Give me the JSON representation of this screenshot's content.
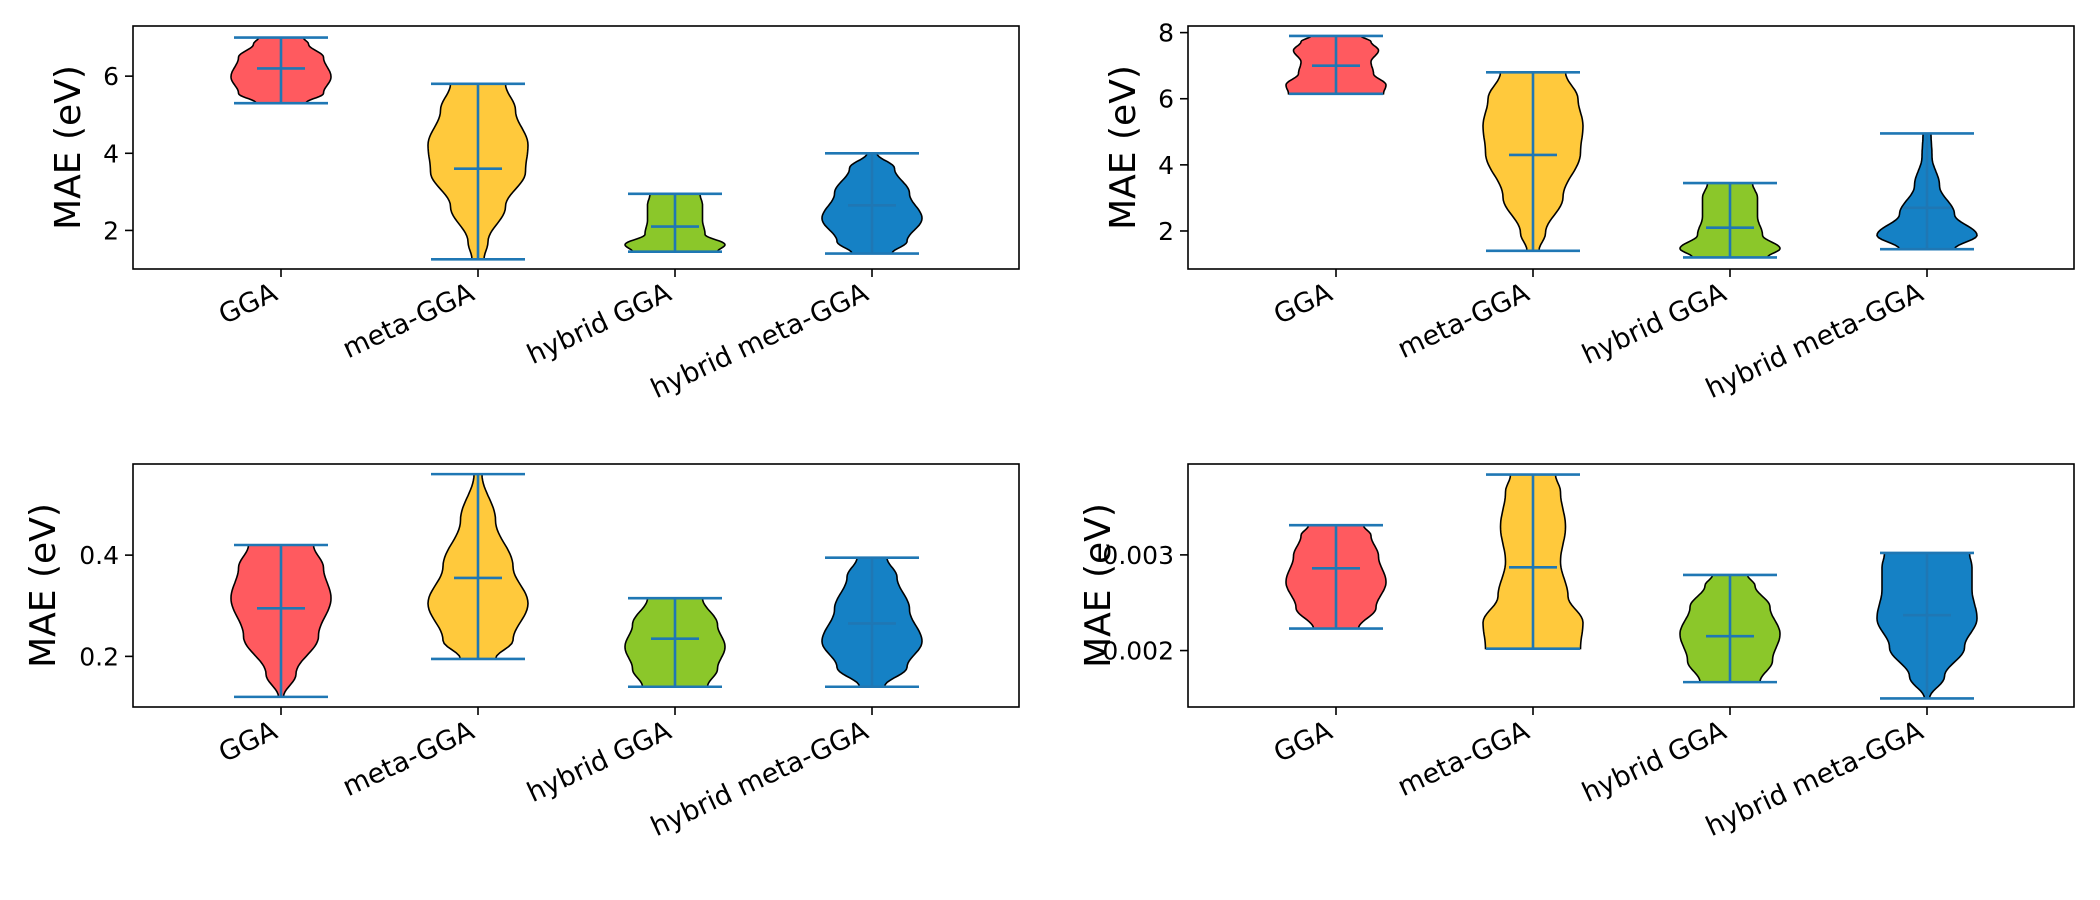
{
  "colors": {
    "bar_line": "#1f77b4",
    "outline": "#000000",
    "violin_fills": [
      "#ff5a5f",
      "#ffc93c",
      "#8bc72a",
      "#1581c5"
    ]
  },
  "chart_data": [
    {
      "type": "violin",
      "position": "top-left",
      "categories": [
        "GGA",
        "meta-GGA",
        "hybrid GGA",
        "hybrid meta-GGA"
      ],
      "ylabel": "MAE (eV)",
      "ylim": [
        1.0,
        7.3
      ],
      "yticks": [
        2,
        4,
        6
      ],
      "ytick_labels": [
        "2",
        "4",
        "6"
      ],
      "stats": [
        {
          "min": 5.3,
          "max": 7.0,
          "mean": 6.2
        },
        {
          "min": 1.25,
          "max": 5.8,
          "mean": 3.6
        },
        {
          "min": 1.45,
          "max": 2.95,
          "mean": 2.1
        },
        {
          "min": 1.4,
          "max": 4.0,
          "mean": 2.65
        }
      ],
      "shapes": [
        [
          [
            0,
            0.5
          ],
          [
            0.15,
            0.85
          ],
          [
            0.4,
            1.0
          ],
          [
            0.7,
            0.85
          ],
          [
            0.9,
            0.55
          ],
          [
            1.0,
            0.45
          ]
        ],
        [
          [
            0,
            0.12
          ],
          [
            0.1,
            0.2
          ],
          [
            0.3,
            0.55
          ],
          [
            0.5,
            0.95
          ],
          [
            0.65,
            1.0
          ],
          [
            0.85,
            0.75
          ],
          [
            1.0,
            0.55
          ]
        ],
        [
          [
            0,
            0.85
          ],
          [
            0.12,
            1.0
          ],
          [
            0.3,
            0.6
          ],
          [
            0.55,
            0.55
          ],
          [
            0.8,
            0.55
          ],
          [
            1.0,
            0.5
          ]
        ],
        [
          [
            0,
            0.4
          ],
          [
            0.12,
            0.7
          ],
          [
            0.35,
            1.0
          ],
          [
            0.6,
            0.75
          ],
          [
            0.85,
            0.45
          ],
          [
            1.0,
            0.1
          ]
        ]
      ]
    },
    {
      "type": "violin",
      "position": "top-right",
      "categories": [
        "GGA",
        "meta-GGA",
        "hybrid GGA",
        "hybrid meta-GGA"
      ],
      "ylabel": "MAE (eV)",
      "ylim": [
        0.85,
        8.2
      ],
      "yticks": [
        2,
        4,
        6,
        8
      ],
      "ytick_labels": [
        "2",
        "4",
        "6",
        "8"
      ],
      "stats": [
        {
          "min": 6.15,
          "max": 7.9,
          "mean": 7.0
        },
        {
          "min": 1.4,
          "max": 6.8,
          "mean": 4.3
        },
        {
          "min": 1.2,
          "max": 3.45,
          "mean": 2.1
        },
        {
          "min": 1.45,
          "max": 4.95,
          "mean": 2.7
        }
      ],
      "shapes": [
        [
          [
            0,
            0.95
          ],
          [
            0.15,
            1.0
          ],
          [
            0.35,
            0.75
          ],
          [
            0.55,
            0.7
          ],
          [
            0.75,
            0.85
          ],
          [
            0.9,
            0.7
          ],
          [
            1.0,
            0.5
          ]
        ],
        [
          [
            0,
            0.12
          ],
          [
            0.1,
            0.25
          ],
          [
            0.3,
            0.6
          ],
          [
            0.55,
            0.95
          ],
          [
            0.7,
            1.0
          ],
          [
            0.85,
            0.9
          ],
          [
            1.0,
            0.65
          ]
        ],
        [
          [
            0,
            0.75
          ],
          [
            0.12,
            1.0
          ],
          [
            0.3,
            0.65
          ],
          [
            0.55,
            0.55
          ],
          [
            0.8,
            0.55
          ],
          [
            1.0,
            0.45
          ]
        ],
        [
          [
            0,
            0.55
          ],
          [
            0.12,
            1.0
          ],
          [
            0.3,
            0.55
          ],
          [
            0.55,
            0.25
          ],
          [
            0.8,
            0.1
          ],
          [
            1.0,
            0.08
          ]
        ]
      ]
    },
    {
      "type": "violin",
      "position": "bottom-left",
      "categories": [
        "GGA",
        "meta-GGA",
        "hybrid GGA",
        "hybrid meta-GGA"
      ],
      "ylabel": "MAE (eV)",
      "ylim": [
        0.1,
        0.58
      ],
      "yticks": [
        0.2,
        0.4
      ],
      "ytick_labels": [
        "0.2",
        "0.4"
      ],
      "stats": [
        {
          "min": 0.12,
          "max": 0.42,
          "mean": 0.295
        },
        {
          "min": 0.195,
          "max": 0.56,
          "mean": 0.355
        },
        {
          "min": 0.14,
          "max": 0.315,
          "mean": 0.235
        },
        {
          "min": 0.14,
          "max": 0.395,
          "mean": 0.265
        }
      ],
      "shapes": [
        [
          [
            0,
            0.05
          ],
          [
            0.15,
            0.3
          ],
          [
            0.4,
            0.75
          ],
          [
            0.65,
            1.0
          ],
          [
            0.85,
            0.85
          ],
          [
            1.0,
            0.65
          ]
        ],
        [
          [
            0,
            0.35
          ],
          [
            0.1,
            0.7
          ],
          [
            0.3,
            1.0
          ],
          [
            0.5,
            0.7
          ],
          [
            0.75,
            0.35
          ],
          [
            1.0,
            0.08
          ]
        ],
        [
          [
            0,
            0.65
          ],
          [
            0.2,
            0.85
          ],
          [
            0.45,
            1.0
          ],
          [
            0.7,
            0.85
          ],
          [
            1.0,
            0.55
          ]
        ],
        [
          [
            0,
            0.25
          ],
          [
            0.15,
            0.7
          ],
          [
            0.35,
            1.0
          ],
          [
            0.6,
            0.75
          ],
          [
            0.85,
            0.5
          ],
          [
            1.0,
            0.3
          ]
        ]
      ]
    },
    {
      "type": "violin",
      "position": "bottom-right",
      "categories": [
        "GGA",
        "meta-GGA",
        "hybrid GGA",
        "hybrid meta-GGA"
      ],
      "ylabel": "MAE (eV)",
      "ylim": [
        0.00141,
        0.00395
      ],
      "yticks": [
        0.002,
        0.003
      ],
      "ytick_labels": [
        "0.002",
        "0.003"
      ],
      "stats": [
        {
          "min": 0.00223,
          "max": 0.00331,
          "mean": 0.00286
        },
        {
          "min": 0.00202,
          "max": 0.00384,
          "mean": 0.00287
        },
        {
          "min": 0.00167,
          "max": 0.00279,
          "mean": 0.00215
        },
        {
          "min": 0.0015,
          "max": 0.00302,
          "mean": 0.00237
        }
      ],
      "shapes": [
        [
          [
            0,
            0.45
          ],
          [
            0.2,
            0.8
          ],
          [
            0.45,
            1.0
          ],
          [
            0.7,
            0.85
          ],
          [
            0.9,
            0.7
          ],
          [
            1.0,
            0.55
          ]
        ],
        [
          [
            0,
            0.95
          ],
          [
            0.15,
            1.0
          ],
          [
            0.3,
            0.7
          ],
          [
            0.5,
            0.55
          ],
          [
            0.7,
            0.65
          ],
          [
            0.9,
            0.55
          ],
          [
            1.0,
            0.45
          ]
        ],
        [
          [
            0,
            0.6
          ],
          [
            0.2,
            0.85
          ],
          [
            0.45,
            1.0
          ],
          [
            0.7,
            0.8
          ],
          [
            0.9,
            0.5
          ],
          [
            1.0,
            0.35
          ]
        ],
        [
          [
            0,
            0.05
          ],
          [
            0.15,
            0.35
          ],
          [
            0.35,
            0.75
          ],
          [
            0.55,
            1.0
          ],
          [
            0.75,
            0.9
          ],
          [
            0.9,
            0.9
          ],
          [
            1.0,
            0.85
          ]
        ]
      ]
    }
  ]
}
